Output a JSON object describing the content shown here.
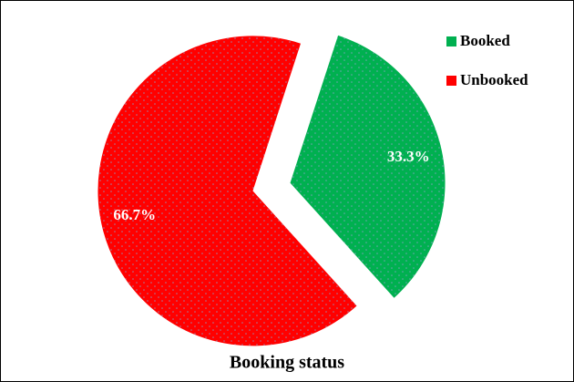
{
  "chart_data": {
    "type": "pie",
    "title": "Booking status",
    "categories": [
      "Booked",
      "Unbooked"
    ],
    "values": [
      33.3,
      66.7
    ],
    "value_labels": [
      "33.3%",
      "66.7%"
    ],
    "colors": [
      "#00b050",
      "#ff0000"
    ],
    "legend": "upper right"
  }
}
